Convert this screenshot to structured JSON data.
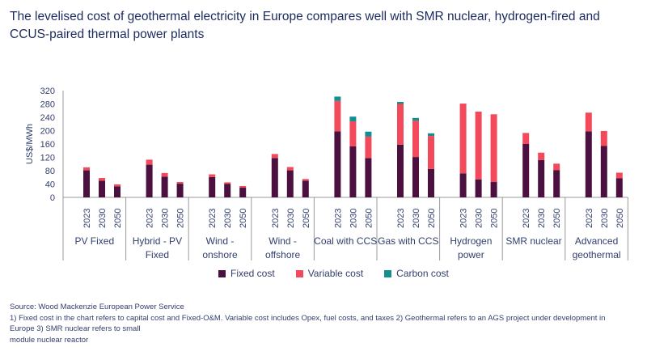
{
  "title": "The levelised cost of geothermal electricity in Europe compares well with SMR nuclear, hydrogen-fired and CCUS-paired thermal power plants",
  "chart_data": {
    "type": "bar",
    "stacked": true,
    "ylabel": "US$/MWh",
    "ylim": [
      0,
      320
    ],
    "yticks": [
      0,
      40,
      80,
      120,
      160,
      200,
      240,
      280,
      320
    ],
    "grid": false,
    "legend_position": "bottom",
    "years": [
      "2023",
      "2030",
      "2050"
    ],
    "categories": [
      "PV Fixed",
      "Hybrid - PV Fixed",
      "Wind - onshore",
      "Wind - offshore",
      "Coal with CCS",
      "Gas with CCS",
      "Hydrogen power",
      "SMR nuclear",
      "Advanced geothermal"
    ],
    "category_lines": [
      [
        "PV Fixed"
      ],
      [
        "Hybrid - PV",
        "Fixed"
      ],
      [
        "Wind -",
        "onshore"
      ],
      [
        "Wind -",
        "offshore"
      ],
      [
        "Coal with CCS"
      ],
      [
        "Gas with CCS"
      ],
      [
        "Hydrogen",
        "power"
      ],
      [
        "SMR nuclear"
      ],
      [
        "Advanced",
        "geothermal"
      ]
    ],
    "series": [
      {
        "name": "Fixed cost",
        "color": "#4b1040",
        "values": [
          [
            81,
            50,
            33
          ],
          [
            98,
            62,
            41
          ],
          [
            61,
            40,
            29
          ],
          [
            118,
            81,
            50
          ],
          [
            198,
            153,
            118
          ],
          [
            158,
            121,
            85
          ],
          [
            72,
            54,
            46
          ],
          [
            160,
            112,
            82
          ],
          [
            198,
            154,
            57
          ]
        ]
      },
      {
        "name": "Variable cost",
        "color": "#f24a5a",
        "values": [
          [
            9,
            8,
            6
          ],
          [
            15,
            11,
            5
          ],
          [
            8,
            5,
            5
          ],
          [
            12,
            10,
            5
          ],
          [
            91,
            75,
            64
          ],
          [
            122,
            109,
            99
          ],
          [
            209,
            203,
            203
          ],
          [
            33,
            22,
            19
          ],
          [
            56,
            45,
            17
          ]
        ]
      },
      {
        "name": "Carbon cost",
        "color": "#138f8f",
        "values": [
          [
            0,
            0,
            0
          ],
          [
            0,
            0,
            0
          ],
          [
            0,
            0,
            0
          ],
          [
            0,
            0,
            0
          ],
          [
            13,
            14,
            15
          ],
          [
            6,
            8,
            8
          ],
          [
            0,
            0,
            0
          ],
          [
            0,
            0,
            0
          ],
          [
            0,
            0,
            0
          ]
        ]
      }
    ]
  },
  "notes": [
    "Source: Wood Mackenzie European Power Service",
    "1) Fixed cost in the chart refers to capital cost and Fixed-O&M. Variable cost includes Opex, fuel costs, and taxes 2) Geothermal refers to an AGS project under development in Europe 3) SMR nuclear refers to small",
    "module nuclear reactor"
  ]
}
